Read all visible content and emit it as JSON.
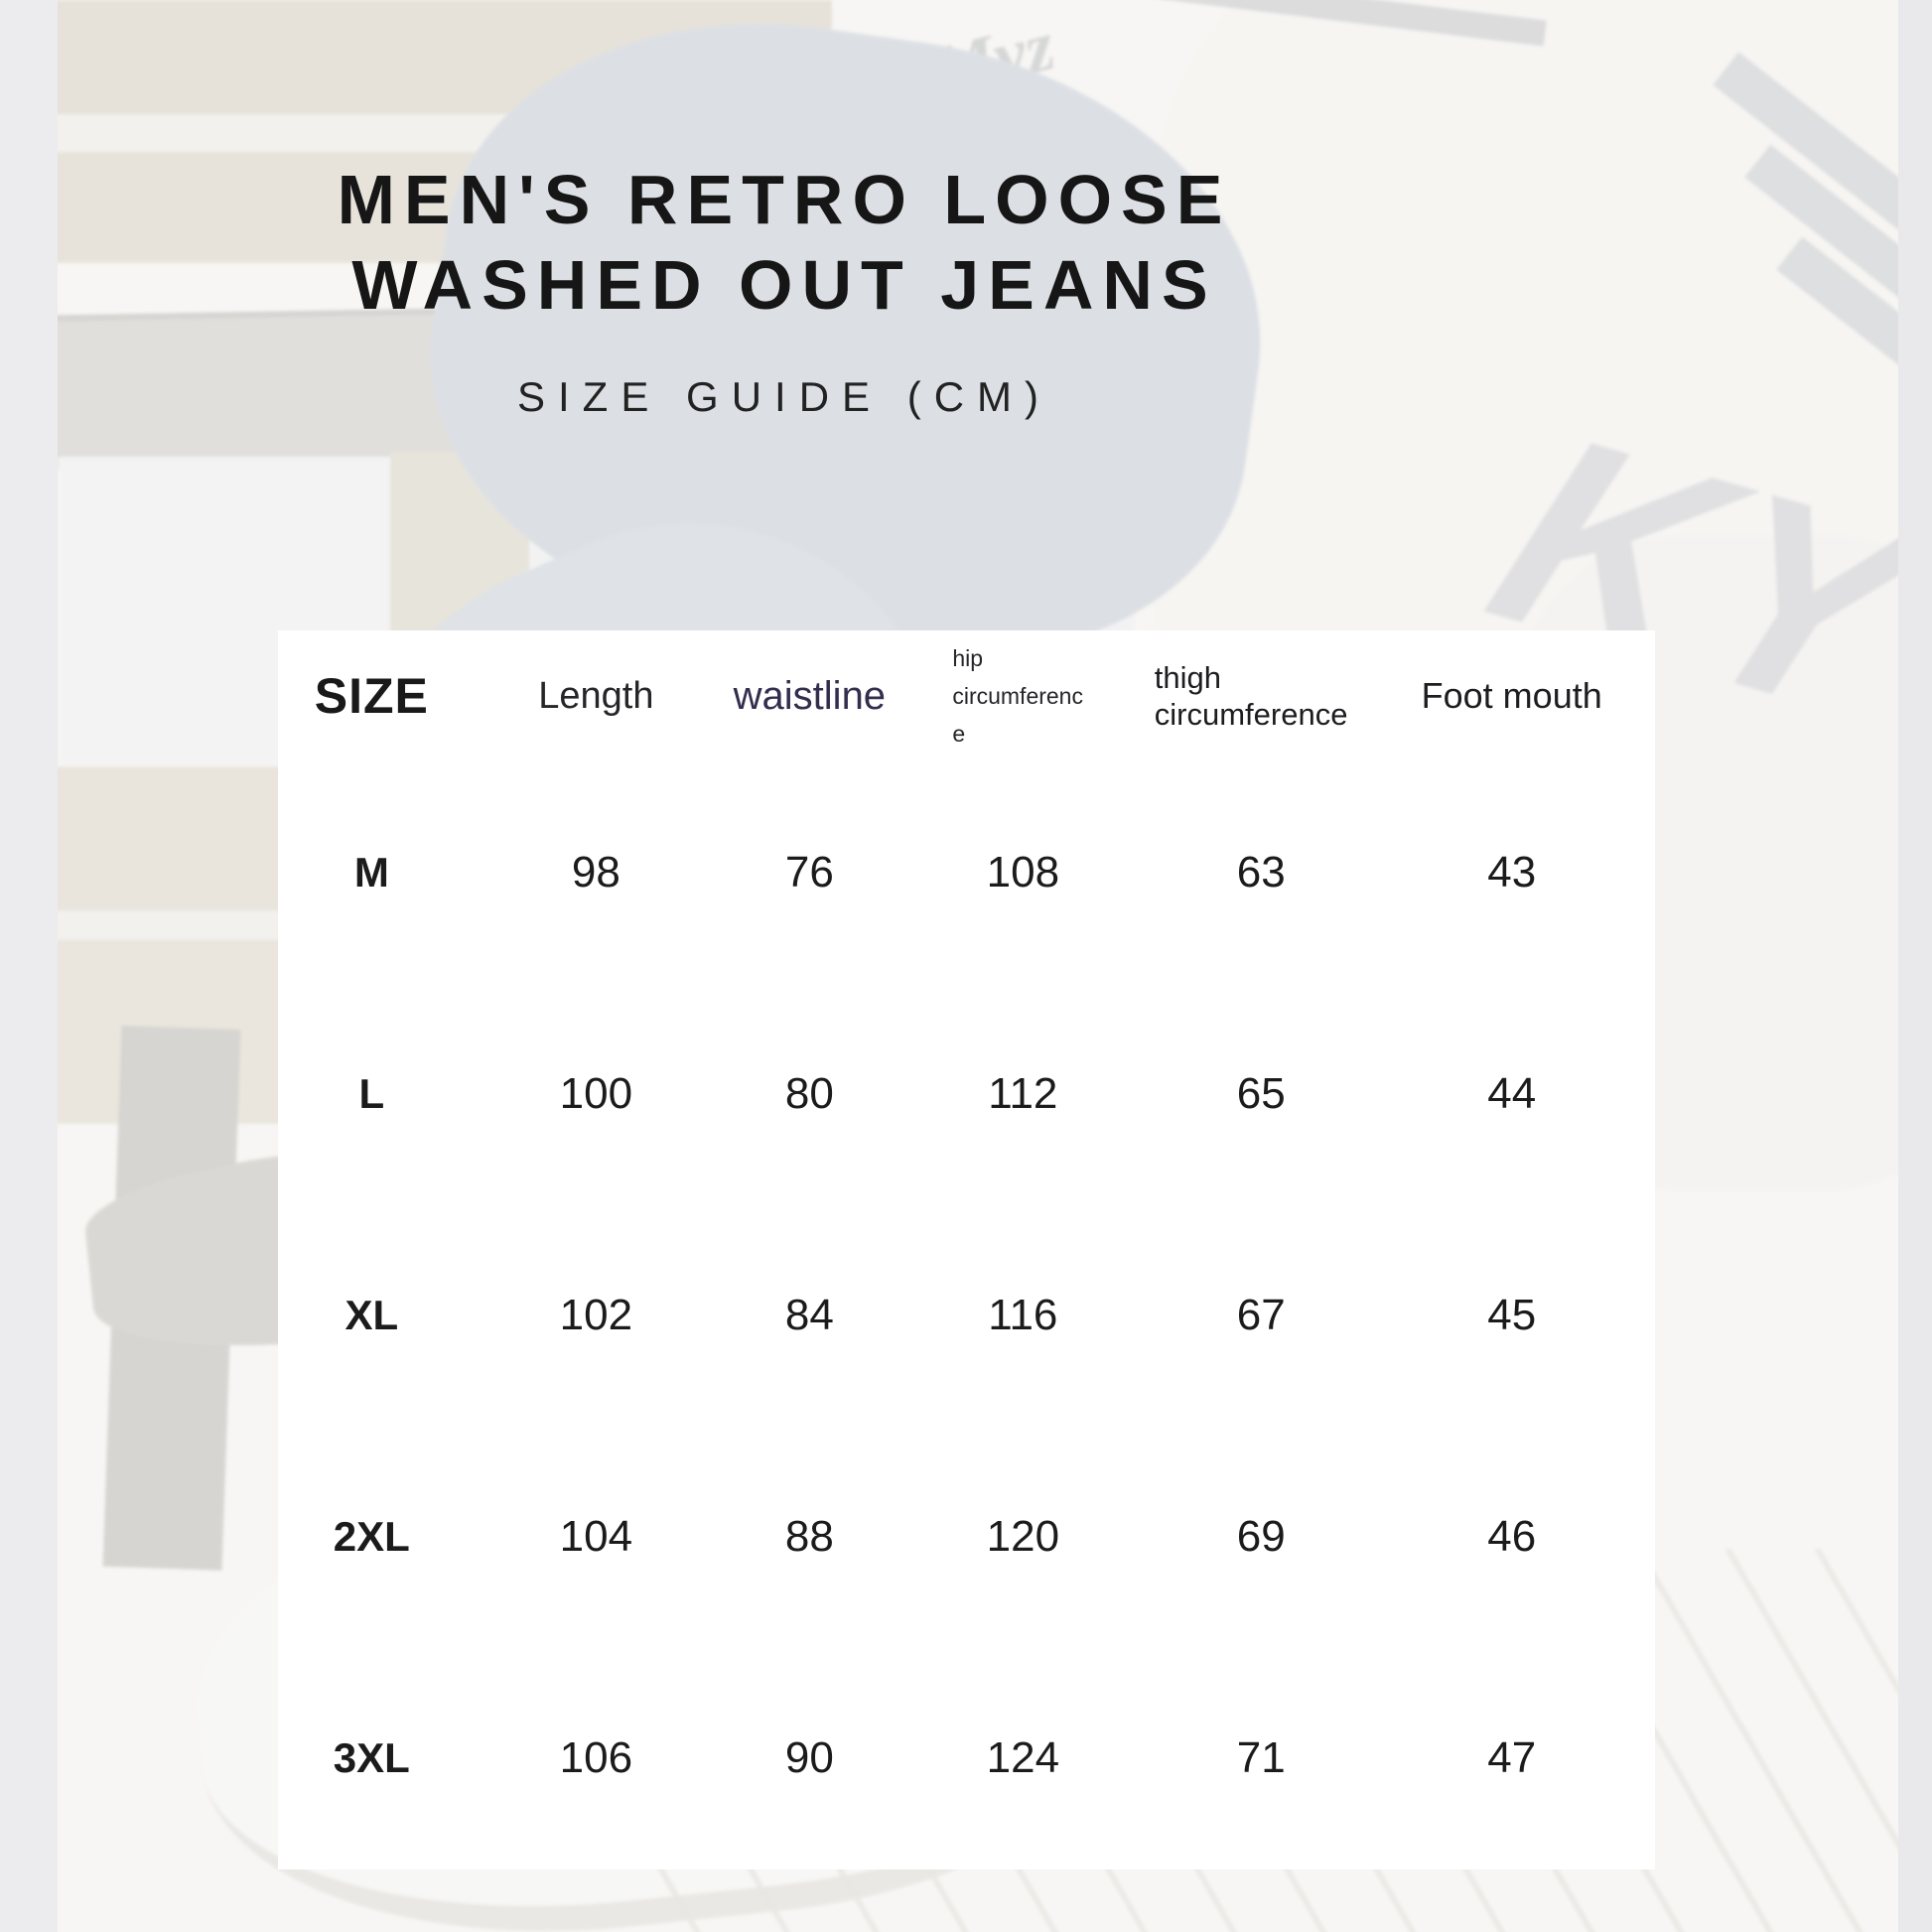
{
  "poster": {
    "title_line1": "MEN'S RETRO LOOSE",
    "title_line2": "WASHED OUT JEANS",
    "subtitle": "SIZE GUIDE (CM)"
  },
  "background": {
    "jacket_text": "KY",
    "script_text": "Myz"
  },
  "colors": {
    "title": "#161616",
    "waistline_header": "#332e4e",
    "card_background": "#ffffff"
  },
  "chart_data": {
    "type": "table",
    "title": "MEN'S RETRO LOOSE WASHED OUT JEANS",
    "subtitle": "SIZE GUIDE (CM)",
    "units": "cm",
    "columns": [
      "SIZE",
      "Length",
      "waistline",
      "hip circumference",
      "thigh circumference",
      "Foot mouth"
    ],
    "rows": [
      [
        "M",
        98,
        76,
        108,
        63,
        43
      ],
      [
        "L",
        100,
        80,
        112,
        65,
        44
      ],
      [
        "XL",
        102,
        84,
        116,
        67,
        45
      ],
      [
        "2XL",
        104,
        88,
        120,
        69,
        46
      ],
      [
        "3XL",
        106,
        90,
        124,
        71,
        47
      ]
    ]
  }
}
